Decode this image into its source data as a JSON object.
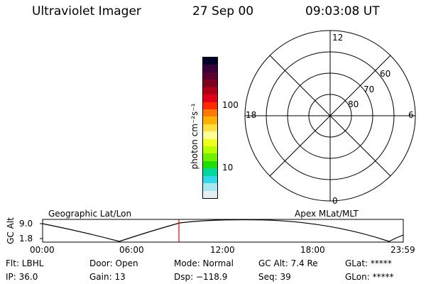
{
  "header": {
    "instrument": "Ultraviolet Imager",
    "date": "27 Sep 00",
    "time": "09:03:08 UT"
  },
  "colorbar": {
    "unit_label": "photon cm⁻²s⁻¹",
    "tick_labels": [
      "100",
      "10"
    ],
    "scale": "log",
    "colors": [
      "#00002a",
      "#3a003a",
      "#5a0030",
      "#800020",
      "#b00018",
      "#e0001a",
      "#ff2a00",
      "#ff7a00",
      "#ffb000",
      "#ffe040",
      "#ffff9a",
      "#f0ff20",
      "#b8ff00",
      "#70f000",
      "#20e000",
      "#00d8a0",
      "#30d8e8",
      "#a8e8f0",
      "#e4f0f4"
    ]
  },
  "polar_plot": {
    "mlt_labels": {
      "top": "12",
      "left": "18",
      "right": "6",
      "bottom": "0"
    },
    "lat_labels": [
      "60",
      "70",
      "80"
    ]
  },
  "timeline": {
    "ylabel": "GC Alt",
    "y_ticks": [
      "9.0",
      "1.8"
    ],
    "left_title": "Geographic Lat/Lon",
    "right_title": "Apex MLat/MLT",
    "x_ticks": [
      "00:00",
      "06:00",
      "12:00",
      "18:00",
      "23:59"
    ],
    "cursor_time": "09:03",
    "cursor_color": "#ff0000"
  },
  "status": {
    "row1": [
      {
        "label": "Flt: LBHL"
      },
      {
        "label": "Door: Open"
      },
      {
        "label": "Mode: Normal"
      },
      {
        "label": "GC Alt: 7.4 Re"
      },
      {
        "label": "GLat: *****"
      }
    ],
    "row2": [
      {
        "label": "IP: 36.0"
      },
      {
        "label": "Gain: 13"
      },
      {
        "label": "Dsp: −118.9"
      },
      {
        "label": "Seq: 39"
      },
      {
        "label": "GLon: *****"
      }
    ]
  }
}
